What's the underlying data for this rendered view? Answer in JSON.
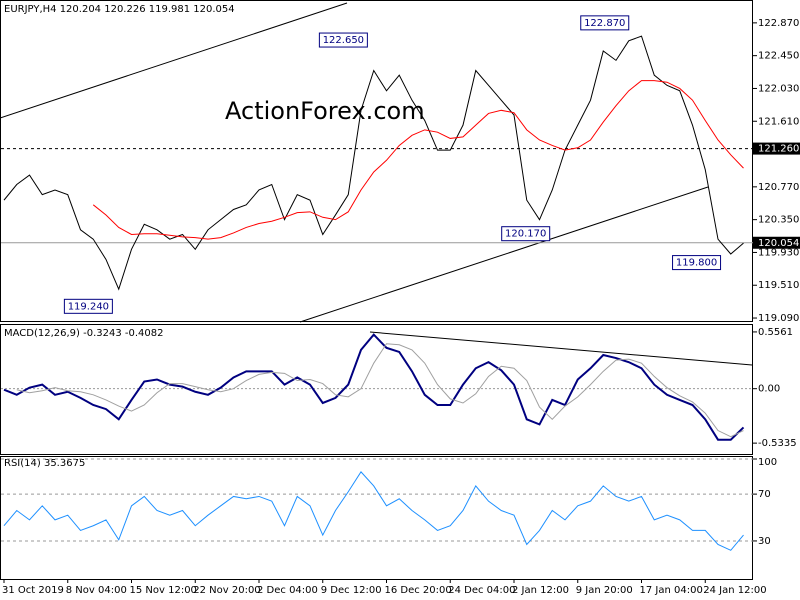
{
  "chart_data": [
    {
      "type": "line",
      "title": "EURJPY,H4  120.204 120.226 119.981 120.054",
      "watermark": "ActionForex.com",
      "categories": [
        "31 Oct 2019",
        null,
        null,
        null,
        null,
        "8 Nov 04:00",
        null,
        null,
        null,
        null,
        "15 Nov 12:00",
        null,
        null,
        null,
        null,
        "22 Nov 20:00",
        null,
        null,
        null,
        null,
        "2 Dec 04:00",
        null,
        null,
        null,
        null,
        "9 Dec 12:00",
        null,
        null,
        null,
        null,
        "16 Dec 20:00",
        null,
        null,
        null,
        null,
        "24 Dec 04:00",
        null,
        null,
        null,
        null,
        "2 Jan 12:00",
        null,
        null,
        null,
        null,
        "9 Jan 20:00",
        null,
        null,
        null,
        null,
        "17 Jan 04:00",
        null,
        null,
        null,
        null,
        "24 Jan 12:00",
        null,
        null,
        null
      ],
      "series": [
        {
          "color": "#000000",
          "values": [
            120.6,
            120.8,
            120.92,
            120.67,
            120.73,
            120.67,
            120.22,
            120.1,
            119.84,
            119.46,
            119.97,
            120.29,
            120.22,
            120.1,
            120.16,
            119.97,
            120.22,
            120.35,
            120.48,
            120.54,
            120.73,
            120.8,
            120.35,
            120.67,
            120.6,
            120.16,
            120.41,
            120.67,
            121.75,
            122.26,
            122.0,
            122.2,
            121.88,
            121.62,
            121.24,
            121.24,
            121.56,
            122.26,
            122.07,
            121.88,
            121.69,
            120.6,
            120.35,
            120.73,
            121.24,
            121.56,
            121.88,
            122.51,
            122.39,
            122.64,
            122.7,
            122.2,
            122.07,
            122.0,
            121.56,
            120.99,
            120.1,
            119.91,
            120.05
          ]
        },
        {
          "color": "#ff0000",
          "values": [
            null,
            null,
            null,
            null,
            null,
            null,
            null,
            120.54,
            120.41,
            120.25,
            120.16,
            120.17,
            120.17,
            120.15,
            120.13,
            120.12,
            120.1,
            120.12,
            120.18,
            120.25,
            120.3,
            120.33,
            120.38,
            120.44,
            120.45,
            120.38,
            120.35,
            120.45,
            120.73,
            120.96,
            121.11,
            121.3,
            121.43,
            121.5,
            121.47,
            121.39,
            121.41,
            121.56,
            121.71,
            121.75,
            121.72,
            121.5,
            121.37,
            121.3,
            121.24,
            121.27,
            121.37,
            121.6,
            121.81,
            122.0,
            122.13,
            122.13,
            122.11,
            122.03,
            121.88,
            121.62,
            121.37,
            121.18,
            121.01
          ]
        }
      ],
      "ylim": [
        119.052,
        123.15
      ],
      "yticks": [
        {
          "value": 122.87,
          "label": "122.870"
        },
        {
          "value": 122.45,
          "label": "122.450"
        },
        {
          "value": 122.03,
          "label": "122.030"
        },
        {
          "value": 121.61,
          "label": "121.610"
        },
        {
          "value": 120.77,
          "label": "120.770"
        },
        {
          "value": 120.35,
          "label": "120.350"
        },
        {
          "value": 119.93,
          "label": "119.930"
        },
        {
          "value": 119.51,
          "label": "119.510"
        },
        {
          "value": 119.09,
          "label": "119.090"
        }
      ],
      "levels": [
        {
          "value": 121.26,
          "label": "121.260",
          "style": "dashed"
        },
        {
          "value": 120.054,
          "label": "120.054",
          "style": "solid"
        }
      ],
      "annotations": [
        {
          "x": 28.5,
          "value": 122.65,
          "label": "122.650"
        },
        {
          "x": 49,
          "value": 122.87,
          "label": "122.870"
        },
        {
          "x": 42.8,
          "value": 120.17,
          "label": "120.170"
        },
        {
          "x": 56.2,
          "value": 119.8,
          "label": "119.800"
        },
        {
          "x": 8.5,
          "value": 119.24,
          "label": "119.240"
        }
      ]
    },
    {
      "type": "line",
      "title": "MACD(12,26,9) -0.3243 -0.4082",
      "zero_line": true,
      "series": [
        {
          "color": "#000080",
          "width": 2,
          "values": [
            -0.01,
            -0.06,
            0.01,
            0.04,
            -0.06,
            -0.03,
            -0.09,
            -0.16,
            -0.2,
            -0.3,
            -0.11,
            0.07,
            0.09,
            0.04,
            0.02,
            -0.03,
            -0.06,
            0.01,
            0.11,
            0.17,
            0.17,
            0.17,
            0.04,
            0.11,
            0.04,
            -0.14,
            -0.09,
            0.04,
            0.38,
            0.53,
            0.4,
            0.36,
            0.17,
            -0.06,
            -0.16,
            -0.16,
            0.04,
            0.2,
            0.26,
            0.18,
            0.04,
            -0.3,
            -0.35,
            -0.11,
            -0.16,
            0.09,
            0.2,
            0.33,
            0.3,
            0.26,
            0.2,
            0.04,
            -0.06,
            -0.11,
            -0.16,
            -0.3,
            -0.5,
            -0.5,
            -0.38
          ]
        },
        {
          "color": "#a0a0a0",
          "width": 1,
          "values": [
            null,
            -0.01,
            -0.04,
            -0.02,
            0.01,
            -0.02,
            -0.03,
            -0.06,
            -0.11,
            -0.17,
            -0.22,
            -0.16,
            -0.04,
            0.05,
            0.05,
            0.02,
            -0.01,
            -0.03,
            0.0,
            0.08,
            0.14,
            0.16,
            0.15,
            0.08,
            0.09,
            0.05,
            -0.06,
            -0.08,
            0.0,
            0.25,
            0.44,
            0.43,
            0.38,
            0.25,
            0.04,
            -0.1,
            -0.14,
            -0.05,
            0.12,
            0.22,
            0.2,
            0.08,
            -0.18,
            -0.3,
            -0.17,
            -0.08,
            0.04,
            0.17,
            0.28,
            0.29,
            0.25,
            0.12,
            0.01,
            -0.07,
            -0.13,
            -0.24,
            -0.41,
            -0.47,
            -0.41
          ]
        }
      ],
      "ylim": [
        -0.64,
        0.624
      ],
      "yticks": [
        0.5561,
        {
          "value": 0,
          "label": "0.00"
        },
        -0.5335
      ]
    },
    {
      "type": "line",
      "title": "RSI(14) 35.3675",
      "grid": true,
      "series": [
        {
          "color": "#1e90ff",
          "width": 1,
          "values": [
            43,
            56,
            48,
            60,
            48,
            52,
            39,
            43,
            48,
            31,
            60,
            68,
            56,
            52,
            56,
            43,
            52,
            60,
            68,
            66,
            68,
            64,
            43,
            68,
            60,
            35,
            56,
            72,
            89,
            77,
            60,
            66,
            56,
            48,
            39,
            43,
            56,
            77,
            64,
            56,
            52,
            27,
            39,
            56,
            48,
            60,
            64,
            77,
            68,
            64,
            68,
            48,
            52,
            48,
            39,
            39,
            27,
            22,
            35
          ]
        }
      ],
      "ylim": [
        -2.5,
        101.7
      ],
      "yticks": [
        100,
        70,
        30
      ]
    }
  ]
}
